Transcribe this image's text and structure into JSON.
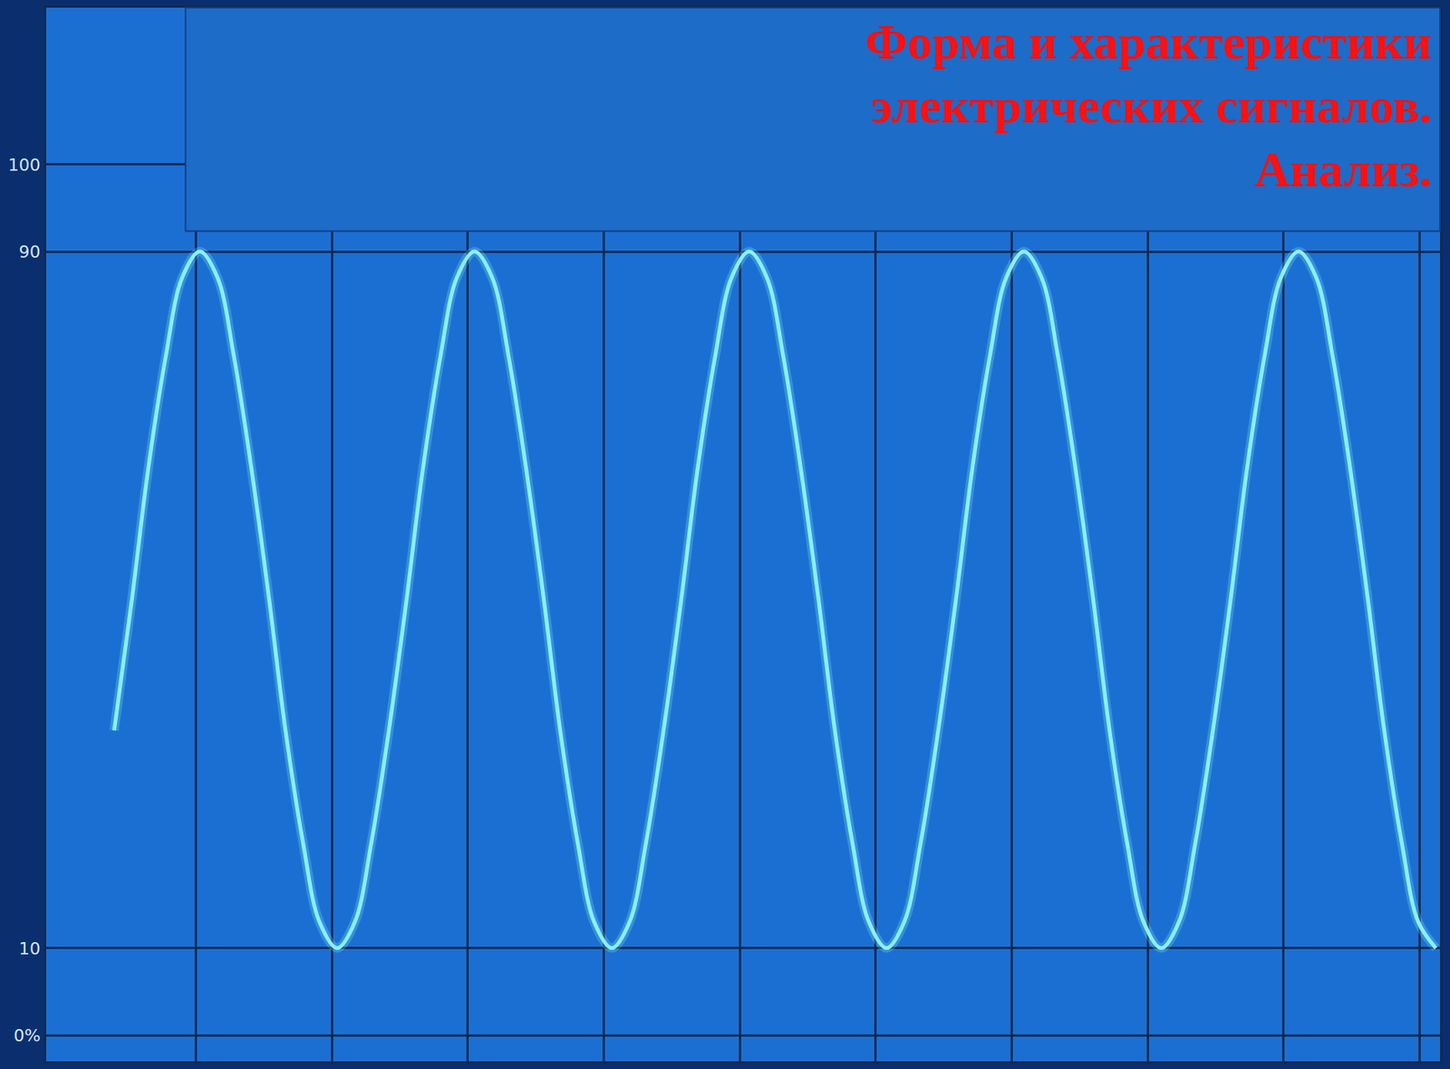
{
  "chart_data": {
    "type": "line",
    "title": "Форма и характеристики электрических сигналов. Анализ.",
    "x": [
      0.4,
      0.53,
      0.65,
      0.78,
      0.9,
      1.03,
      1.16,
      1.28,
      1.41,
      1.54,
      1.66,
      1.79,
      1.91,
      2.04,
      2.17,
      2.29,
      2.42,
      2.55,
      2.67,
      2.8,
      2.92,
      3.05,
      3.18,
      3.3,
      3.43,
      3.56,
      3.68,
      3.81,
      3.93,
      4.06,
      4.19,
      4.31,
      4.44,
      4.57,
      4.69,
      4.82,
      4.94,
      5.07,
      5.2,
      5.32,
      5.45,
      5.58,
      5.7,
      5.83,
      5.95,
      6.08,
      6.21,
      6.33,
      6.46,
      6.59,
      6.71,
      6.84,
      6.96,
      7.09,
      7.22,
      7.34,
      7.47,
      7.6,
      7.72,
      7.85,
      7.97,
      8.1,
      8.23,
      8.35,
      8.48,
      8.61,
      8.73,
      8.86,
      8.98,
      9.11,
      9.24,
      9.36,
      9.49,
      9.62,
      9.74,
      9.87,
      9.99,
      10.12
    ],
    "values": [
      35,
      50,
      65,
      78,
      87,
      90,
      87,
      78,
      65,
      50,
      35,
      22,
      13,
      10,
      13,
      22,
      35,
      50,
      65,
      78,
      87,
      90,
      87,
      78,
      65,
      50,
      35,
      22,
      13,
      10,
      13,
      22,
      35,
      50,
      65,
      78,
      87,
      90,
      87,
      78,
      65,
      50,
      35,
      22,
      13,
      10,
      13,
      22,
      35,
      50,
      65,
      78,
      87,
      90,
      87,
      78,
      65,
      50,
      35,
      22,
      13,
      10,
      13,
      22,
      35,
      50,
      65,
      78,
      87,
      90,
      87,
      78,
      65,
      50,
      35,
      22,
      13,
      10
    ],
    "color": "#8af0ff",
    "xlim": [
      -0.1,
      10.15
    ],
    "ylim": [
      -3,
      118
    ],
    "xticks": [
      1,
      2,
      3,
      4,
      5,
      6,
      7,
      8,
      9,
      10
    ],
    "yticks": [
      {
        "value": 0,
        "label": "0%"
      },
      10,
      90,
      100
    ],
    "grid": true,
    "tick_labels": "y"
  }
}
